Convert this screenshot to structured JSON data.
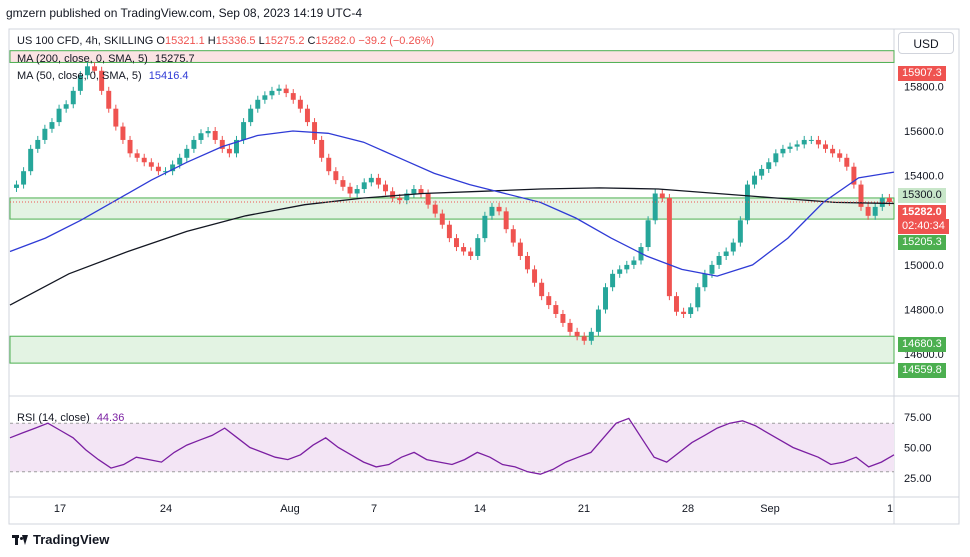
{
  "header": {
    "published": "gmzern published on TradingView.com, Sep 08, 2023 14:19 UTC-4"
  },
  "symbol": {
    "name": "US 100 CFD, 4h, SKILLING",
    "open_label": "O",
    "open": "15321.1",
    "high_label": "H",
    "high": "15336.5",
    "low_label": "L",
    "low": "15275.2",
    "close_label": "C",
    "close": "15282.0",
    "change": "−39.2 (−0.26%)"
  },
  "indicators": {
    "ma200_label": "MA (200, close, 0, SMA, 5)",
    "ma200_value": "15275.7",
    "ma50_label": "MA (50, close, 0, SMA, 5)",
    "ma50_value": "15416.4",
    "rsi_label": "RSI (14, close)",
    "rsi_value": "44.36"
  },
  "currency_button": "USD",
  "price_tags": {
    "zone_top": "15907.3",
    "r1": "15300.0",
    "last_price": "15282.0",
    "countdown": "02:40:34",
    "r2": "15205.3",
    "s1": "14680.3",
    "s2": "14559.8"
  },
  "footer": {
    "brand": "TradingView"
  },
  "colors": {
    "up": "#26a69a",
    "down": "#ef5350",
    "ma200": "#131722",
    "ma50": "#2f3bd6",
    "rsi": "#7b1fa2",
    "zone_red": "#fbe3e3",
    "zone_green": "#e3f3e3",
    "zone_border": "#4caf50"
  },
  "chart_data": {
    "type": "candlestick",
    "price_axis": {
      "min": 14520,
      "max": 15990,
      "ticks": [
        15800,
        15600,
        15400,
        15000,
        14800,
        14600
      ]
    },
    "price_tick_labels": [
      "15800.0",
      "15600.0",
      "15400.0",
      "15000.0",
      "14800.0",
      "14600.0"
    ],
    "x_tick_labels": [
      "17",
      "24",
      "Aug",
      "7",
      "14",
      "21",
      "28",
      "Sep",
      "1"
    ],
    "zones": [
      {
        "kind": "resistance",
        "from": 15907.3,
        "to": 15960
      },
      {
        "kind": "support",
        "from": 15205.3,
        "to": 15300.0
      },
      {
        "kind": "support",
        "from": 14559.8,
        "to": 14680.3
      }
    ],
    "close_series": [
      15360,
      15420,
      15520,
      15560,
      15610,
      15640,
      15700,
      15720,
      15780,
      15850,
      15890,
      15870,
      15780,
      15700,
      15620,
      15560,
      15500,
      15480,
      15460,
      15440,
      15420,
      15420,
      15450,
      15480,
      15520,
      15560,
      15590,
      15600,
      15560,
      15520,
      15500,
      15560,
      15640,
      15700,
      15740,
      15760,
      15780,
      15790,
      15770,
      15740,
      15700,
      15640,
      15560,
      15480,
      15420,
      15380,
      15350,
      15320,
      15340,
      15370,
      15390,
      15360,
      15330,
      15300,
      15290,
      15320,
      15340,
      15320,
      15270,
      15230,
      15180,
      15120,
      15080,
      15060,
      15040,
      15120,
      15220,
      15260,
      15240,
      15160,
      15100,
      15040,
      14980,
      14920,
      14860,
      14820,
      14780,
      14740,
      14700,
      14680,
      14660,
      14700,
      14800,
      14900,
      14960,
      14980,
      15000,
      15020,
      15080,
      15200,
      15320,
      15300,
      14860,
      14790,
      14780,
      14810,
      14900,
      14960,
      15000,
      15040,
      15060,
      15100,
      15200,
      15360,
      15400,
      15430,
      15460,
      15500,
      15520,
      15530,
      15540,
      15560,
      15560,
      15540,
      15520,
      15500,
      15480,
      15440,
      15360,
      15260,
      15220,
      15260,
      15300,
      15282
    ],
    "ma50": [
      15060,
      15120,
      15200,
      15290,
      15380,
      15460,
      15530,
      15580,
      15600,
      15590,
      15550,
      15480,
      15410,
      15360,
      15320,
      15280,
      15210,
      15120,
      15040,
      14980,
      14950,
      15000,
      15120,
      15280,
      15390,
      15416
    ],
    "ma200": [
      14820,
      14960,
      15060,
      15150,
      15220,
      15270,
      15300,
      15320,
      15330,
      15340,
      15345,
      15340,
      15320,
      15300,
      15280,
      15275
    ],
    "rsi_axis": {
      "min": 15,
      "max": 85,
      "ticks": [
        75,
        50,
        25
      ]
    },
    "rsi_tick_labels": [
      "75.00",
      "50.00",
      "25.00"
    ],
    "rsi": [
      58,
      62,
      66,
      70,
      64,
      58,
      48,
      40,
      33,
      36,
      42,
      40,
      38,
      46,
      52,
      56,
      60,
      66,
      58,
      50,
      46,
      42,
      40,
      44,
      52,
      58,
      50,
      44,
      38,
      34,
      36,
      42,
      46,
      40,
      38,
      36,
      40,
      46,
      42,
      36,
      34,
      30,
      28,
      32,
      38,
      42,
      46,
      58,
      70,
      74,
      58,
      42,
      38,
      46,
      54,
      60,
      66,
      70,
      72,
      68,
      62,
      56,
      50,
      46,
      42,
      36,
      38,
      42,
      34,
      38,
      44
    ]
  }
}
